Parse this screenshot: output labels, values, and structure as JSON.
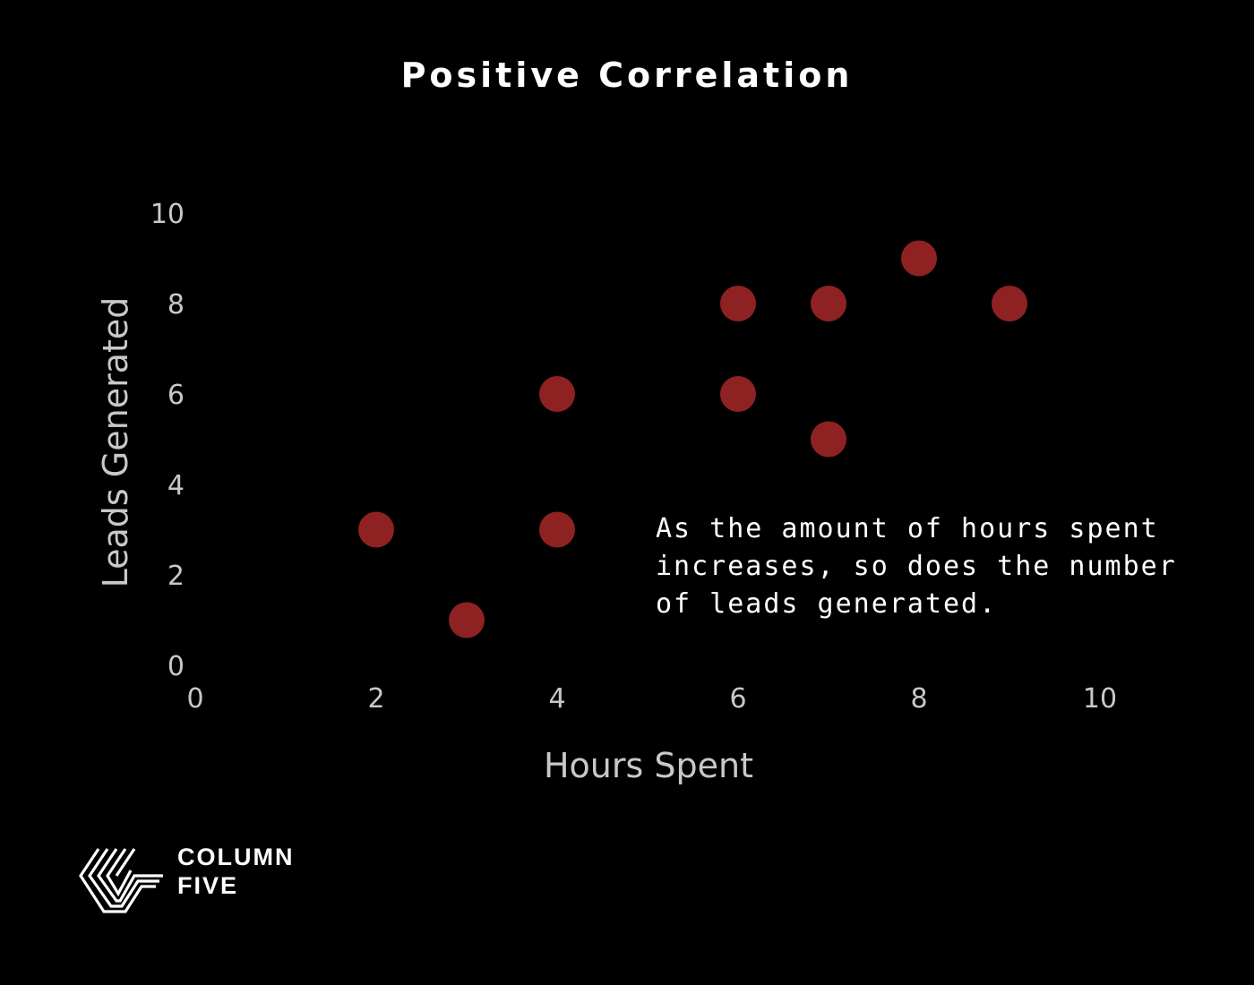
{
  "chart_data": {
    "type": "scatter",
    "title": "Positive Correlation",
    "xlabel": "Hours Spent",
    "ylabel": "Leads Generated",
    "xlim": [
      0,
      10
    ],
    "ylim": [
      0,
      10
    ],
    "xticks": [
      "0",
      "2",
      "4",
      "6",
      "8",
      "10"
    ],
    "yticks": [
      "0",
      "2",
      "4",
      "6",
      "8",
      "10"
    ],
    "grid": false,
    "points": [
      {
        "x": 2,
        "y": 3
      },
      {
        "x": 3,
        "y": 1
      },
      {
        "x": 4,
        "y": 3
      },
      {
        "x": 4,
        "y": 6
      },
      {
        "x": 6,
        "y": 6
      },
      {
        "x": 6,
        "y": 8
      },
      {
        "x": 7,
        "y": 5
      },
      {
        "x": 7,
        "y": 8
      },
      {
        "x": 8,
        "y": 9
      },
      {
        "x": 9,
        "y": 8
      }
    ],
    "point_color": "#8e2222",
    "annotation": "As the amount of hours spent increases, so does the number of leads generated."
  },
  "colors": {
    "background": "#000000",
    "title": "#ffffff",
    "axis_text": "#c8c8c8",
    "annotation_text": "#ffffff"
  },
  "brand": {
    "line1": "COLUMN",
    "line2": "FIVE",
    "icon": "column-five-logo-icon"
  }
}
